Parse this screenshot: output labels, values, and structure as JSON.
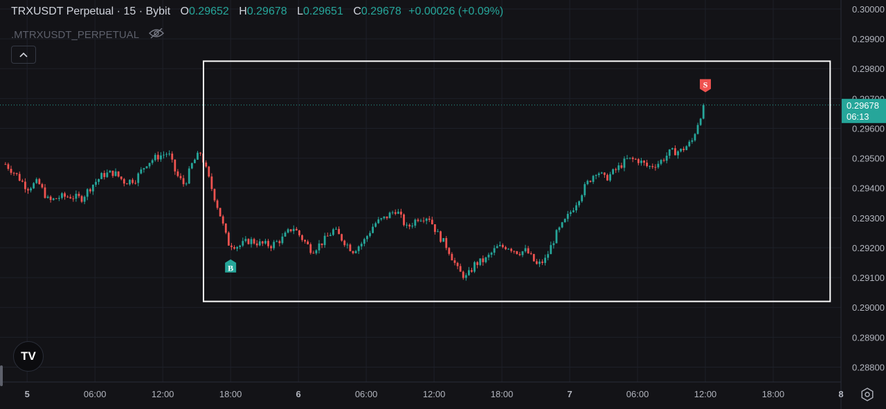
{
  "header": {
    "symbol": "TRXUSDT Perpetual",
    "sep": "·",
    "interval": "15",
    "exchange": "Bybit",
    "o_label": "O",
    "o_val": "0.29652",
    "h_label": "H",
    "h_val": "0.29678",
    "l_label": "L",
    "l_val": "0.29651",
    "c_label": "C",
    "c_val": "0.29678",
    "change": "+0.00026 (+0.09%)"
  },
  "indicator": {
    "name": ".MTRXUSDT_PERPETUAL",
    "icon": "eye-off-icon"
  },
  "controls": {
    "collapse_icon": "chevron-up-icon",
    "logo": "TV",
    "settings_icon": "gear-icon"
  },
  "colors": {
    "up": "#26a69a",
    "down": "#ef5350",
    "background": "#131317",
    "grid": "#1e2029",
    "marker_buy": "#26a69a",
    "marker_sell": "#ef5350",
    "box": "#ffffff"
  },
  "chart_data": {
    "type": "candlestick",
    "timeframe": "15",
    "ylim": [
      0.2875,
      0.3003
    ],
    "y_ticks": [
      "0.30000",
      "0.29900",
      "0.29800",
      "0.29700",
      "0.29600",
      "0.29500",
      "0.29400",
      "0.29300",
      "0.29200",
      "0.29100",
      "0.29000",
      "0.28900",
      "0.28800"
    ],
    "x_ticks": [
      "5",
      "06:00",
      "12:00",
      "18:00",
      "6",
      "06:00",
      "12:00",
      "18:00",
      "7",
      "06:00",
      "12:00",
      "18:00",
      "8"
    ],
    "x_range_days": [
      4.9,
      8.0
    ],
    "last_price": {
      "value": "0.29678",
      "countdown": "06:13",
      "price": 0.29678
    },
    "close_path": [
      [
        4.92,
        0.2948
      ],
      [
        4.96,
        0.29445
      ],
      [
        5.0,
        0.294
      ],
      [
        5.04,
        0.2942
      ],
      [
        5.08,
        0.29355
      ],
      [
        5.12,
        0.2937
      ],
      [
        5.16,
        0.29372
      ],
      [
        5.2,
        0.29365
      ],
      [
        5.24,
        0.2941
      ],
      [
        5.28,
        0.29445
      ],
      [
        5.32,
        0.29452
      ],
      [
        5.36,
        0.2942
      ],
      [
        5.4,
        0.2943
      ],
      [
        5.44,
        0.29483
      ],
      [
        5.48,
        0.29505
      ],
      [
        5.52,
        0.29518
      ],
      [
        5.55,
        0.29445
      ],
      [
        5.58,
        0.2941
      ],
      [
        5.61,
        0.29485
      ],
      [
        5.64,
        0.2952
      ],
      [
        5.68,
        0.294
      ],
      [
        5.71,
        0.29315
      ],
      [
        5.74,
        0.29215
      ],
      [
        5.78,
        0.29205
      ],
      [
        5.82,
        0.29225
      ],
      [
        5.86,
        0.29213
      ],
      [
        5.9,
        0.29208
      ],
      [
        5.94,
        0.2923
      ],
      [
        5.98,
        0.2927
      ],
      [
        6.01,
        0.29235
      ],
      [
        6.05,
        0.2919
      ],
      [
        6.09,
        0.2922
      ],
      [
        6.13,
        0.2926
      ],
      [
        6.16,
        0.2923
      ],
      [
        6.2,
        0.2919
      ],
      [
        6.24,
        0.2922
      ],
      [
        6.28,
        0.2928
      ],
      [
        6.32,
        0.293
      ],
      [
        6.36,
        0.29328
      ],
      [
        6.4,
        0.29265
      ],
      [
        6.44,
        0.293
      ],
      [
        6.48,
        0.29305
      ],
      [
        6.51,
        0.2925
      ],
      [
        6.55,
        0.292
      ],
      [
        6.59,
        0.2912
      ],
      [
        6.62,
        0.291
      ],
      [
        6.65,
        0.29145
      ],
      [
        6.69,
        0.2916
      ],
      [
        6.73,
        0.292
      ],
      [
        6.77,
        0.29205
      ],
      [
        6.81,
        0.29185
      ],
      [
        6.84,
        0.2919
      ],
      [
        6.88,
        0.2914
      ],
      [
        6.91,
        0.2916
      ],
      [
        6.95,
        0.29245
      ],
      [
        6.98,
        0.29285
      ],
      [
        7.02,
        0.29345
      ],
      [
        7.06,
        0.2941
      ],
      [
        7.1,
        0.2946
      ],
      [
        7.13,
        0.2943
      ],
      [
        7.17,
        0.2946
      ],
      [
        7.21,
        0.29495
      ],
      [
        7.25,
        0.29495
      ],
      [
        7.29,
        0.2947
      ],
      [
        7.33,
        0.29485
      ],
      [
        7.37,
        0.2952
      ],
      [
        7.41,
        0.29525
      ],
      [
        7.45,
        0.29555
      ],
      [
        7.48,
        0.2964
      ],
      [
        7.5,
        0.29678
      ]
    ],
    "markers": [
      {
        "label": "B",
        "day": 5.75,
        "price": 0.29182,
        "position": "below"
      },
      {
        "label": "S",
        "day": 7.5,
        "price": 0.297,
        "position": "above"
      }
    ],
    "highlight_box": {
      "from_day": 5.65,
      "to_day": 7.96,
      "from_price": 0.2902,
      "to_price": 0.29825
    }
  }
}
